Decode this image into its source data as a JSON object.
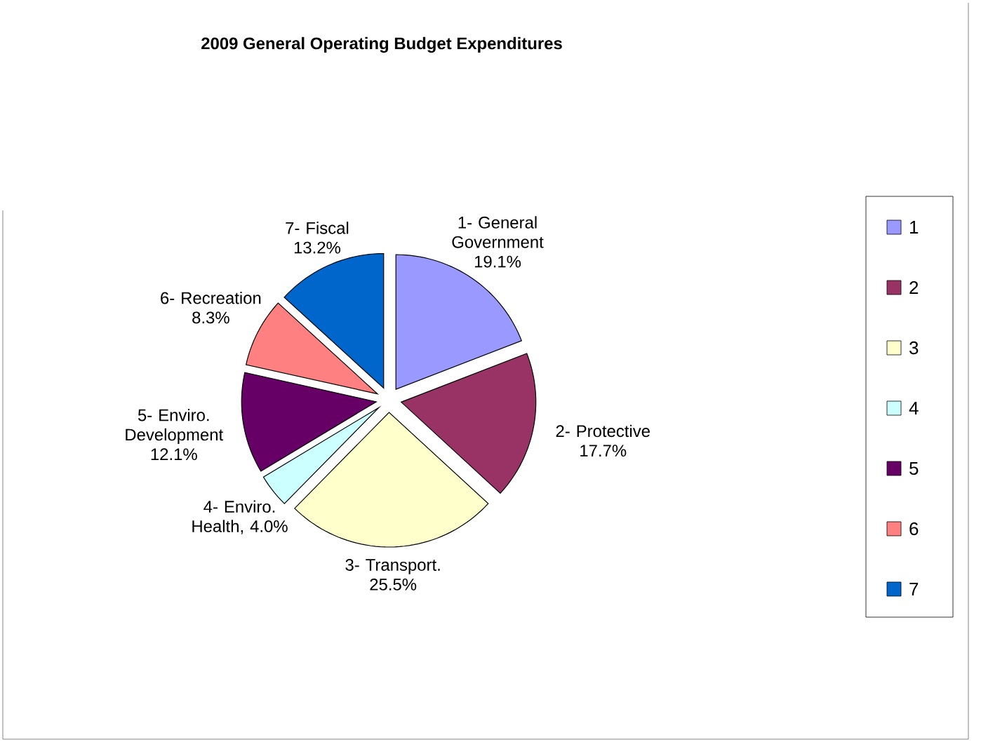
{
  "chart_data": {
    "type": "pie",
    "title": "2009 General Operating Budget Expenditures",
    "categories": [
      "1",
      "2",
      "3",
      "4",
      "5",
      "6",
      "7"
    ],
    "values": [
      19.1,
      17.7,
      25.5,
      4.0,
      12.1,
      8.3,
      13.2
    ],
    "colors": [
      "#9999ff",
      "#993366",
      "#ffffcc",
      "#ccffff",
      "#660066",
      "#ff8080",
      "#0066cc"
    ],
    "value_labels": [
      "1- General Government 19.1%",
      "2- Protective 17.7%",
      "3- Transport. 25.5%",
      "4- Enviro. Health, 4.0%",
      "5- Enviro. Development 12.1%",
      "6- Recreation 8.3%",
      "7- Fiscal 13.2%"
    ],
    "legend": "right"
  }
}
